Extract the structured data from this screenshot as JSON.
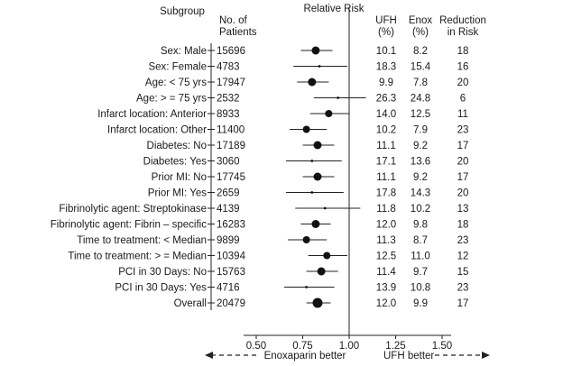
{
  "chart_data": {
    "type": "forest",
    "x_axis": {
      "label_left": "Enoxaparin better",
      "label_right": "UFH better",
      "ticks": [
        "0.50",
        "0.75",
        "1.00",
        "1.25",
        "1.50"
      ],
      "tick_values": [
        0.5,
        0.75,
        1.0,
        1.25,
        1.5
      ],
      "xlim": [
        0.5,
        1.5
      ],
      "reference_line": 1.0
    },
    "headers": {
      "subgroup": "Subgroup",
      "n_line1": "No. of",
      "n_line2": "Patients",
      "rr": "Relative Risk",
      "ufh_line1": "UFH",
      "ufh_line2": "(%)",
      "enox_line1": "Enox",
      "enox_line2": "(%)",
      "red_line1": "Reduction",
      "red_line2": "in Risk"
    },
    "rows": [
      {
        "subgroup": "Sex: Male",
        "n": "15696",
        "ufh": "10.1",
        "enox": "8.2",
        "reduction": "18",
        "rr": 0.82,
        "ci": [
          0.74,
          0.91
        ],
        "weight": "large"
      },
      {
        "subgroup": "Sex: Female",
        "n": "4783",
        "ufh": "18.3",
        "enox": "15.4",
        "reduction": "16",
        "rr": 0.84,
        "ci": [
          0.7,
          0.99
        ],
        "weight": "small"
      },
      {
        "subgroup": "Age: < 75 yrs",
        "n": "17947",
        "ufh": "9.9",
        "enox": "7.8",
        "reduction": "20",
        "rr": 0.8,
        "ci": [
          0.72,
          0.89
        ],
        "weight": "large"
      },
      {
        "subgroup": "Age: > = 75 yrs",
        "n": "2532",
        "ufh": "26.3",
        "enox": "24.8",
        "reduction": "6",
        "rr": 0.94,
        "ci": [
          0.81,
          1.09
        ],
        "weight": "small"
      },
      {
        "subgroup": "Infarct location: Anterior",
        "n": "8933",
        "ufh": "14.0",
        "enox": "12.5",
        "reduction": "11",
        "rr": 0.89,
        "ci": [
          0.79,
          1.0
        ],
        "weight": "medium"
      },
      {
        "subgroup": "Infarct location: Other",
        "n": "11400",
        "ufh": "10.2",
        "enox": "7.9",
        "reduction": "23",
        "rr": 0.77,
        "ci": [
          0.68,
          0.88
        ],
        "weight": "medium"
      },
      {
        "subgroup": "Diabetes: No",
        "n": "17189",
        "ufh": "11.1",
        "enox": "9.2",
        "reduction": "17",
        "rr": 0.83,
        "ci": [
          0.75,
          0.92
        ],
        "weight": "large"
      },
      {
        "subgroup": "Diabetes: Yes",
        "n": "3060",
        "ufh": "17.1",
        "enox": "13.6",
        "reduction": "20",
        "rr": 0.8,
        "ci": [
          0.66,
          0.96
        ],
        "weight": "small"
      },
      {
        "subgroup": "Prior MI: No",
        "n": "17745",
        "ufh": "11.1",
        "enox": "9.2",
        "reduction": "17",
        "rr": 0.83,
        "ci": [
          0.75,
          0.92
        ],
        "weight": "large"
      },
      {
        "subgroup": "Prior MI: Yes",
        "n": "2659",
        "ufh": "17.8",
        "enox": "14.3",
        "reduction": "20",
        "rr": 0.8,
        "ci": [
          0.66,
          0.97
        ],
        "weight": "small"
      },
      {
        "subgroup": "Fibrinolytic agent: Streptokinase",
        "n": "4139",
        "ufh": "11.8",
        "enox": "10.2",
        "reduction": "13",
        "rr": 0.87,
        "ci": [
          0.71,
          1.06
        ],
        "weight": "small"
      },
      {
        "subgroup": "Fibrinolytic agent: Fibrin – specific",
        "n": "16283",
        "ufh": "12.0",
        "enox": "9.8",
        "reduction": "18",
        "rr": 0.82,
        "ci": [
          0.74,
          0.9
        ],
        "weight": "large"
      },
      {
        "subgroup": "Time to treatment: < Median",
        "n": "9899",
        "ufh": "11.3",
        "enox": "8.7",
        "reduction": "23",
        "rr": 0.77,
        "ci": [
          0.67,
          0.88
        ],
        "weight": "medium"
      },
      {
        "subgroup": "Time to treatment: > = Median",
        "n": "10394",
        "ufh": "12.5",
        "enox": "11.0",
        "reduction": "12",
        "rr": 0.88,
        "ci": [
          0.78,
          0.99
        ],
        "weight": "medium"
      },
      {
        "subgroup": "PCI in 30 Days: No",
        "n": "15763",
        "ufh": "11.4",
        "enox": "9.7",
        "reduction": "15",
        "rr": 0.85,
        "ci": [
          0.77,
          0.94
        ],
        "weight": "large"
      },
      {
        "subgroup": "PCI in 30 Days: Yes",
        "n": "4716",
        "ufh": "13.9",
        "enox": "10.8",
        "reduction": "23",
        "rr": 0.77,
        "ci": [
          0.65,
          0.92
        ],
        "weight": "small"
      },
      {
        "subgroup": "Overall",
        "n": "20479",
        "ufh": "12.0",
        "enox": "9.9",
        "reduction": "17",
        "rr": 0.83,
        "ci": [
          0.77,
          0.9
        ],
        "weight": "xlarge"
      }
    ]
  }
}
